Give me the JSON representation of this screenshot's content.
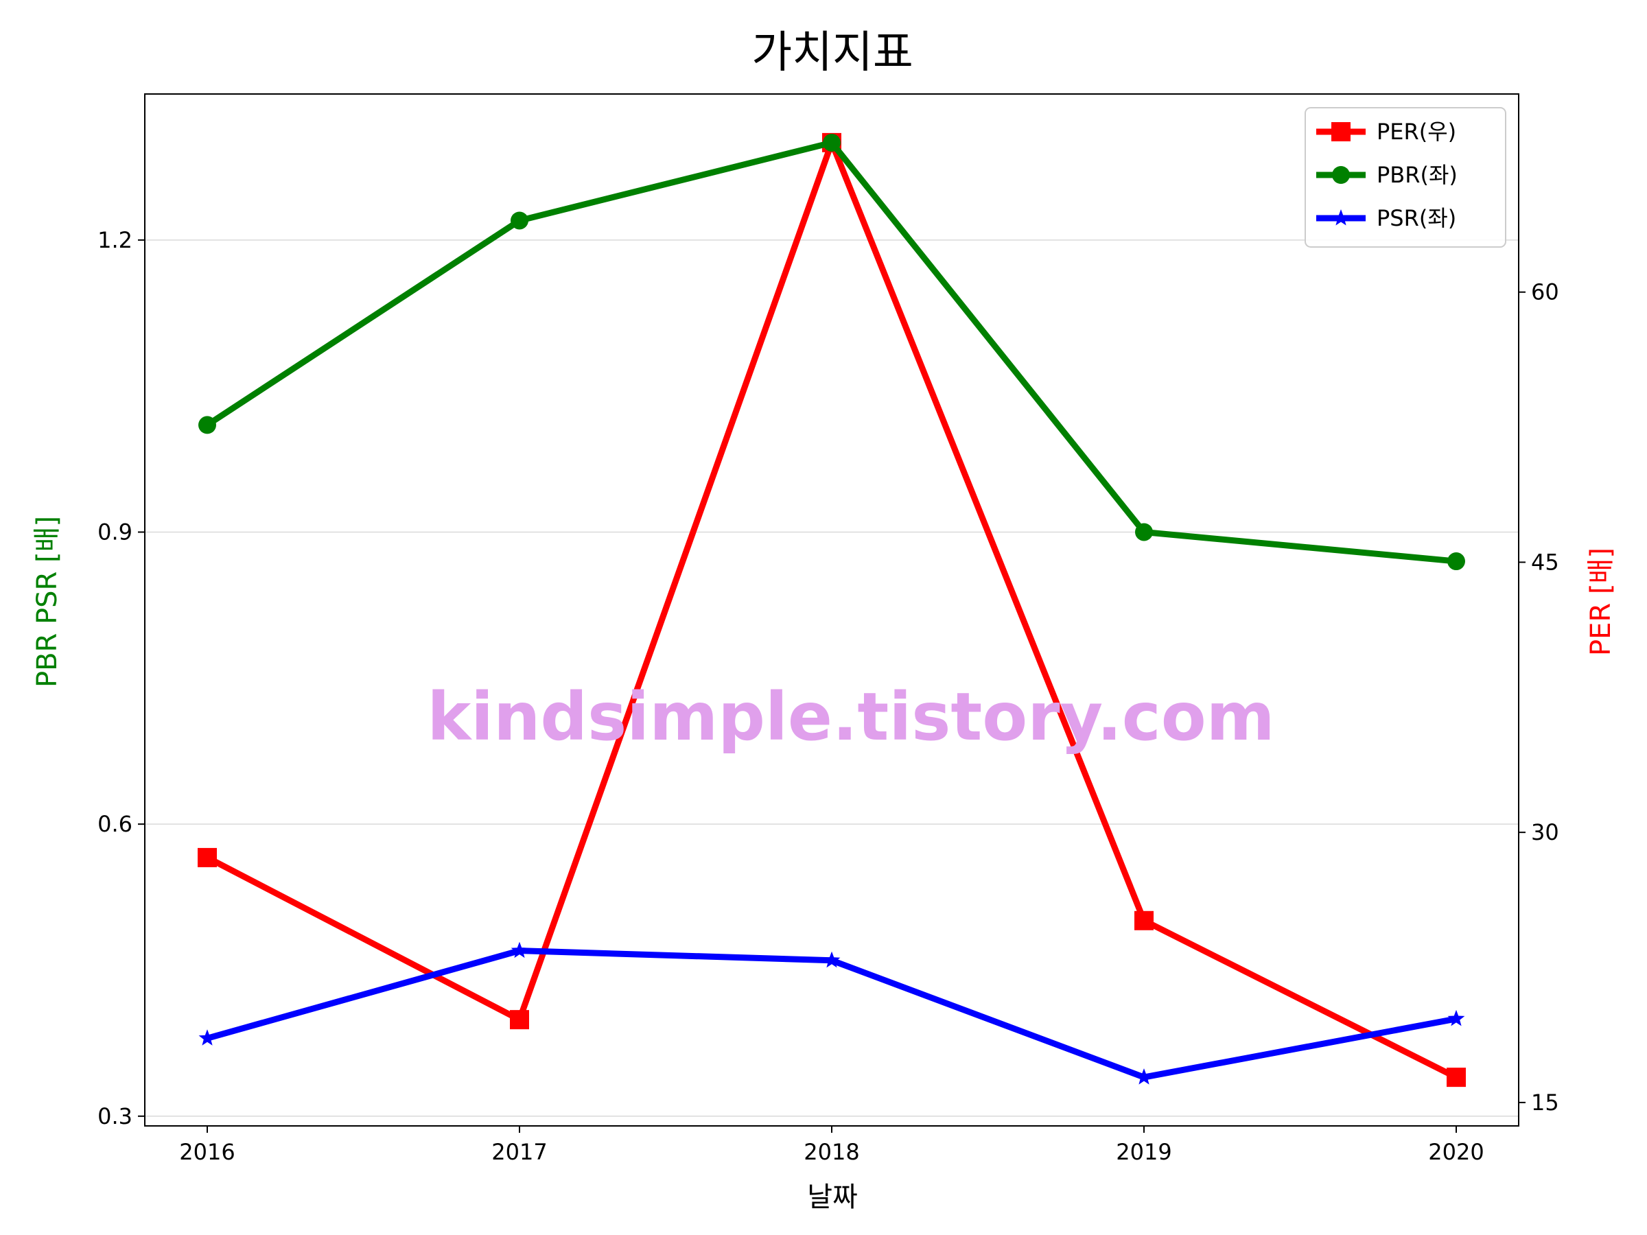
{
  "chart_data": {
    "type": "line",
    "title": "가치지표",
    "xlabel": "날짜",
    "ylabel_left": "PBR PSR [배]",
    "ylabel_right": "PER [배]",
    "categories": [
      "2016",
      "2017",
      "2018",
      "2019",
      "2020"
    ],
    "x_range": [
      2015.8,
      2020.2
    ],
    "left_axis": {
      "ylim": [
        0.29,
        1.35
      ],
      "ticks": [
        0.3,
        0.6,
        0.9,
        1.2
      ],
      "tick_labels": [
        "0.3",
        "0.6",
        "0.9",
        "1.2"
      ]
    },
    "right_axis": {
      "ylim": [
        13.7,
        71.0
      ],
      "ticks": [
        15,
        30,
        45,
        60
      ],
      "tick_labels": [
        "15",
        "30",
        "45",
        "60"
      ]
    },
    "grid": true,
    "legend_position": "upper right",
    "series": [
      {
        "name": "PER(우)",
        "axis": "right",
        "color": "#ff0000",
        "marker": "square",
        "values": [
          28.6,
          19.6,
          68.3,
          25.1,
          16.4
        ]
      },
      {
        "name": "PBR(좌)",
        "axis": "left",
        "color": "#008000",
        "marker": "circle",
        "values": [
          1.01,
          1.22,
          1.3,
          0.9,
          0.87
        ]
      },
      {
        "name": "PSR(좌)",
        "axis": "left",
        "color": "#0000ff",
        "marker": "star",
        "values": [
          0.38,
          0.47,
          0.46,
          0.34,
          0.4
        ]
      }
    ],
    "watermark": {
      "text": "kindsimple.tistory.com",
      "color": "#e0a0ec"
    }
  }
}
